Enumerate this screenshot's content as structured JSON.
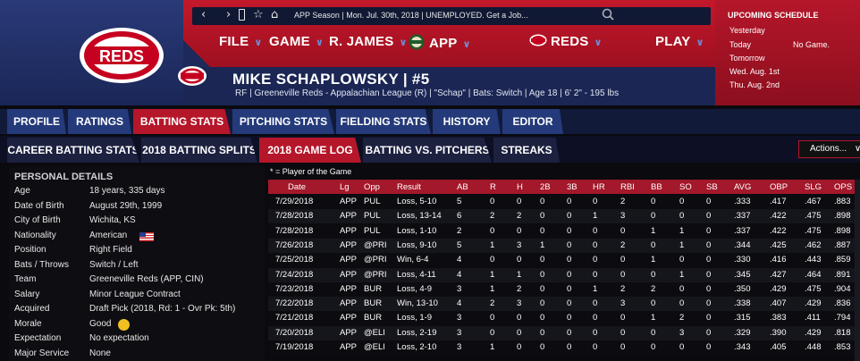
{
  "topbar": {
    "nav_back": "‹",
    "nav_forward": "›",
    "bookmark": "▯",
    "history_back": "⎌",
    "star": "☆",
    "home": "⌂",
    "status": "APP Season | Mon. Jul. 30th, 2018 | UNEMPLOYED. Get a Job..."
  },
  "menu": {
    "file": "FILE",
    "game": "GAME",
    "manager": "R. JAMES",
    "app": "APP",
    "team": "REDS",
    "play": "PLAY"
  },
  "logo": {
    "text": "REDS"
  },
  "player": {
    "name": "MIKE SCHAPLOWSKY  |  #5",
    "info": "RF | Greeneville Reds - Appalachian League (R) | \"Schap\" | Bats: Switch | Age 18 | 6' 2\" - 195 lbs"
  },
  "schedule": {
    "title": "UPCOMING SCHEDULE",
    "rows": [
      {
        "day": "Yesterday",
        "game": ""
      },
      {
        "day": "Today",
        "game": "No Game."
      },
      {
        "day": "Tomorrow",
        "game": ""
      },
      {
        "day": "Wed. Aug. 1st",
        "game": ""
      },
      {
        "day": "Thu. Aug. 2nd",
        "game": ""
      }
    ]
  },
  "tabs_main": [
    "PROFILE",
    "RATINGS",
    "BATTING STATS",
    "PITCHING STATS",
    "FIELDING STATS",
    "HISTORY",
    "EDITOR"
  ],
  "tabs_sub": [
    "CAREER BATTING STATS",
    "2018 BATTING SPLITS",
    "2018 GAME LOG",
    "BATTING VS. PITCHERS",
    "STREAKS"
  ],
  "actions_label": "Actions...",
  "actions_chevron": "∨",
  "personal": {
    "title": "PERSONAL DETAILS",
    "rows": [
      {
        "k": "Age",
        "v": "18 years, 335 days"
      },
      {
        "k": "Date of Birth",
        "v": "August 29th, 1999"
      },
      {
        "k": "City of Birth",
        "v": "Wichita, KS"
      },
      {
        "k": "Nationality",
        "v": "American"
      },
      {
        "k": "Position",
        "v": "Right Field"
      },
      {
        "k": "Bats / Throws",
        "v": "Switch / Left"
      },
      {
        "k": "Team",
        "v": "Greeneville Reds (APP, CIN)"
      },
      {
        "k": "Salary",
        "v": "Minor League Contract"
      },
      {
        "k": "Acquired",
        "v": "Draft Pick (2018, Rd: 1 - Ovr Pk: 5th)"
      },
      {
        "k": "Morale",
        "v": "Good"
      },
      {
        "k": "Expectation",
        "v": "No expectation"
      },
      {
        "k": "Major Service",
        "v": "None"
      }
    ]
  },
  "potg_note": "* = Player of the Game",
  "log": {
    "headers": [
      "Date",
      "Lg",
      "Opp",
      "Result",
      "AB",
      "R",
      "H",
      "2B",
      "3B",
      "HR",
      "RBI",
      "BB",
      "SO",
      "SB",
      "AVG",
      "OBP",
      "SLG",
      "OPS"
    ],
    "rows": [
      [
        "7/29/2018",
        "APP",
        "PUL",
        "Loss, 5-10",
        "5",
        "0",
        "0",
        "0",
        "0",
        "0",
        "2",
        "0",
        "0",
        "0",
        ".333",
        ".417",
        ".467",
        ".883"
      ],
      [
        "7/28/2018",
        "APP",
        "PUL",
        "Loss, 13-14",
        "6",
        "2",
        "2",
        "0",
        "0",
        "1",
        "3",
        "0",
        "0",
        "0",
        ".337",
        ".422",
        ".475",
        ".898"
      ],
      [
        "7/28/2018",
        "APP",
        "PUL",
        "Loss, 1-10",
        "2",
        "0",
        "0",
        "0",
        "0",
        "0",
        "0",
        "1",
        "1",
        "0",
        ".337",
        ".422",
        ".475",
        ".898"
      ],
      [
        "7/26/2018",
        "APP",
        "@PRI",
        "Loss, 9-10",
        "5",
        "1",
        "3",
        "1",
        "0",
        "0",
        "2",
        "0",
        "1",
        "0",
        ".344",
        ".425",
        ".462",
        ".887"
      ],
      [
        "7/25/2018",
        "APP",
        "@PRI",
        "Win, 6-4",
        "4",
        "0",
        "0",
        "0",
        "0",
        "0",
        "0",
        "1",
        "0",
        "0",
        ".330",
        ".416",
        ".443",
        ".859"
      ],
      [
        "7/24/2018",
        "APP",
        "@PRI",
        "Loss, 4-11",
        "4",
        "1",
        "1",
        "0",
        "0",
        "0",
        "0",
        "0",
        "1",
        "0",
        ".345",
        ".427",
        ".464",
        ".891"
      ],
      [
        "7/23/2018",
        "APP",
        "BUR",
        "Loss, 4-9",
        "3",
        "1",
        "2",
        "0",
        "0",
        "1",
        "2",
        "2",
        "0",
        "0",
        ".350",
        ".429",
        ".475",
        ".904"
      ],
      [
        "7/22/2018",
        "APP",
        "BUR",
        "Win, 13-10",
        "4",
        "2",
        "3",
        "0",
        "0",
        "0",
        "3",
        "0",
        "0",
        "0",
        ".338",
        ".407",
        ".429",
        ".836"
      ],
      [
        "7/21/2018",
        "APP",
        "BUR",
        "Loss, 1-9",
        "3",
        "0",
        "0",
        "0",
        "0",
        "0",
        "0",
        "1",
        "2",
        "0",
        ".315",
        ".383",
        ".411",
        ".794"
      ],
      [
        "7/20/2018",
        "APP",
        "@ELI",
        "Loss, 2-19",
        "3",
        "0",
        "0",
        "0",
        "0",
        "0",
        "0",
        "0",
        "3",
        "0",
        ".329",
        ".390",
        ".429",
        ".818"
      ],
      [
        "7/19/2018",
        "APP",
        "@ELI",
        "Loss, 2-10",
        "3",
        "1",
        "0",
        "0",
        "0",
        "0",
        "0",
        "0",
        "0",
        "0",
        ".343",
        ".405",
        ".448",
        ".853"
      ]
    ]
  },
  "colors": {
    "reds_red": "#b5162a",
    "navy": "#1b2654",
    "tab_blue": "#243a7a"
  }
}
